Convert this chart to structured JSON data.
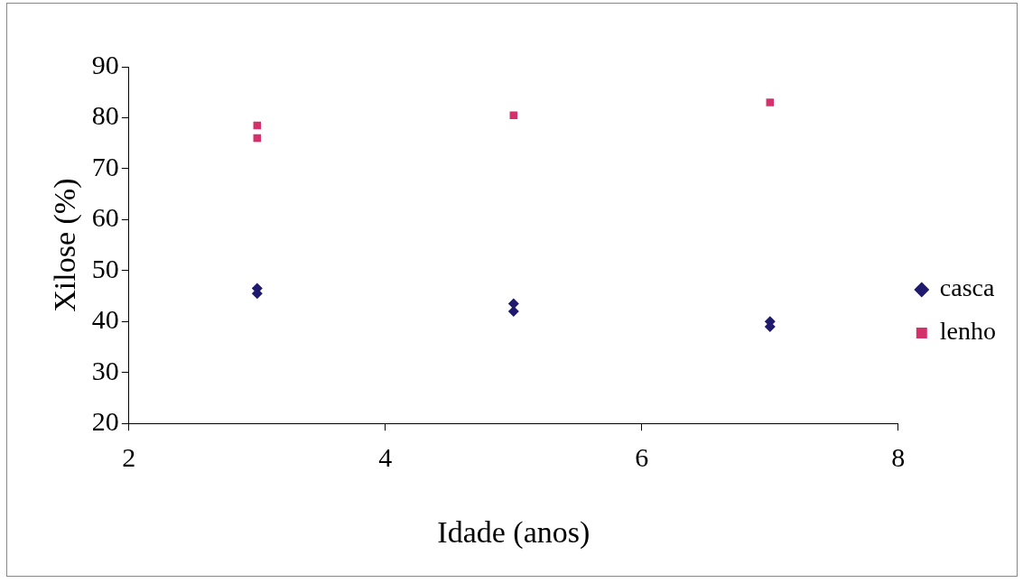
{
  "chart_data": {
    "type": "scatter",
    "xlabel": "Idade (anos)",
    "ylabel": "Xilose (%)",
    "xlim": [
      2,
      8
    ],
    "xticks": [
      2,
      4,
      6,
      8
    ],
    "ylim": [
      20,
      90
    ],
    "yticks": [
      20,
      30,
      40,
      50,
      60,
      70,
      80,
      90
    ],
    "grid": false,
    "legend": "right",
    "series": [
      {
        "name": "casca",
        "color": "#1f1a6e",
        "marker": "diamond",
        "x": [
          3,
          3,
          5,
          5,
          7,
          7
        ],
        "values": [
          46.5,
          45.5,
          43.5,
          42,
          40,
          39
        ]
      },
      {
        "name": "lenho",
        "color": "#d4306a",
        "marker": "square",
        "x": [
          3,
          3,
          5,
          7
        ],
        "values": [
          78.5,
          76,
          80.5,
          83
        ]
      }
    ]
  }
}
